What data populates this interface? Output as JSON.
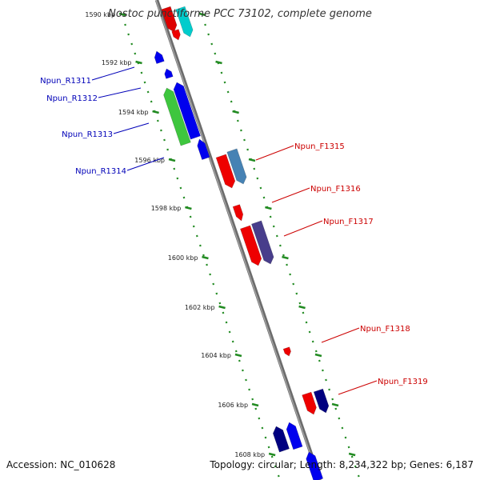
{
  "title": "Nostoc punctiforme PCC 73102, complete genome",
  "accession": "Accession: NC_010628",
  "topology_info": "Topology: circular; Length: 8,234,322 bp; Genes: 6,187",
  "colors": {
    "backbone": "#888888",
    "tick": "#228b22",
    "reverse_label": "#0000b8",
    "forward_label": "#cc0000"
  },
  "kbp_labels": [
    "1590 kbp",
    "1592 kbp",
    "1594 kbp",
    "1596 kbp",
    "1598 kbp",
    "1600 kbp",
    "1602 kbp",
    "1604 kbp",
    "1606 kbp",
    "1608 kbp"
  ],
  "reverse_gene_labels": [
    "Npun_R1311",
    "Npun_R1312",
    "Npun_R1313",
    "Npun_R1314"
  ],
  "forward_gene_labels": [
    "Npun_F1315",
    "Npun_F1316",
    "Npun_F1317",
    "Npun_F1318",
    "Npun_F1319"
  ],
  "reverse_genes": [
    {
      "color": "#0000ee"
    },
    {
      "color": "#0000ee"
    },
    {
      "color": "#0000ee"
    },
    {
      "color": "#3ec63e"
    },
    {
      "color": "#0000ee"
    },
    {
      "color": "#000080"
    },
    {
      "color": "#0000ee"
    },
    {
      "color": "#0000ee"
    }
  ],
  "forward_genes": [
    {
      "color": "#dd0000"
    },
    {
      "color": "#00cccc"
    },
    {
      "color": "#ee0000"
    },
    {
      "color": "#ee0000"
    },
    {
      "color": "#4682b4"
    },
    {
      "color": "#ee0000"
    },
    {
      "color": "#ee0000"
    },
    {
      "color": "#483d8b"
    },
    {
      "color": "#ee0000"
    },
    {
      "color": "#ee0000"
    },
    {
      "color": "#000080"
    }
  ]
}
